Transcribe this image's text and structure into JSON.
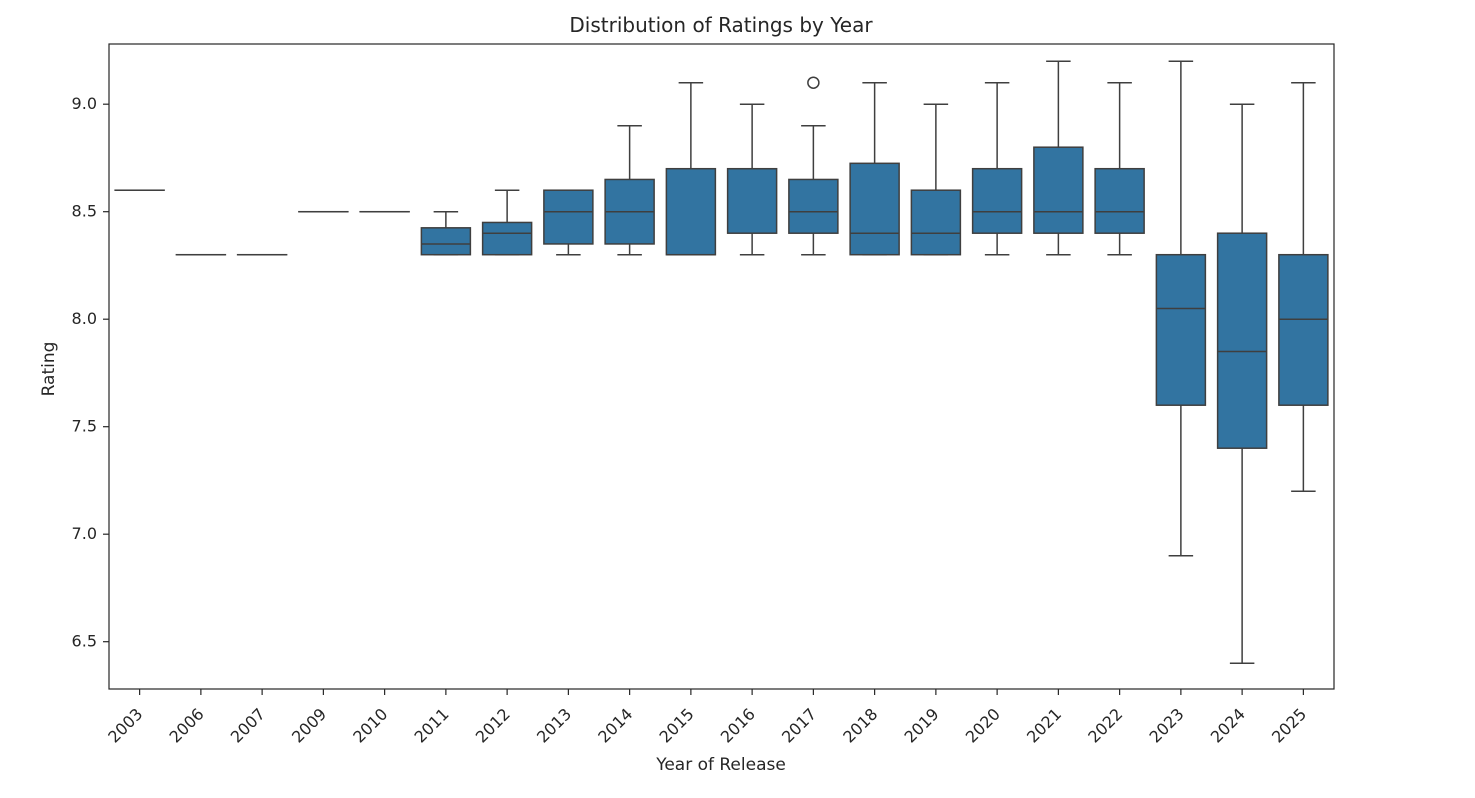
{
  "chart_data": {
    "type": "box",
    "title": "Distribution of Ratings by Year",
    "xlabel": "Year of Release",
    "ylabel": "Rating",
    "ylim": [
      6.28,
      9.28
    ],
    "yticks": [
      "6.5",
      "7.0",
      "7.5",
      "8.0",
      "8.5",
      "9.0"
    ],
    "grid": false,
    "color": "#3274a1",
    "edge_color": "#3f3f3f",
    "categories": [
      "2003",
      "2006",
      "2007",
      "2009",
      "2010",
      "2011",
      "2012",
      "2013",
      "2014",
      "2015",
      "2016",
      "2017",
      "2018",
      "2019",
      "2020",
      "2021",
      "2022",
      "2023",
      "2024",
      "2025"
    ],
    "boxes": [
      {
        "min": 8.6,
        "q1": 8.6,
        "median": 8.6,
        "q3": 8.6,
        "max": 8.6,
        "outliers": []
      },
      {
        "min": 8.3,
        "q1": 8.3,
        "median": 8.3,
        "q3": 8.3,
        "max": 8.3,
        "outliers": []
      },
      {
        "min": 8.3,
        "q1": 8.3,
        "median": 8.3,
        "q3": 8.3,
        "max": 8.3,
        "outliers": []
      },
      {
        "min": 8.5,
        "q1": 8.5,
        "median": 8.5,
        "q3": 8.5,
        "max": 8.5,
        "outliers": []
      },
      {
        "min": 8.5,
        "q1": 8.5,
        "median": 8.5,
        "q3": 8.5,
        "max": 8.5,
        "outliers": []
      },
      {
        "min": 8.3,
        "q1": 8.3,
        "median": 8.35,
        "q3": 8.425,
        "max": 8.5,
        "outliers": []
      },
      {
        "min": 8.3,
        "q1": 8.3,
        "median": 8.4,
        "q3": 8.45,
        "max": 8.6,
        "outliers": []
      },
      {
        "min": 8.3,
        "q1": 8.35,
        "median": 8.5,
        "q3": 8.6,
        "max": 8.6,
        "outliers": []
      },
      {
        "min": 8.3,
        "q1": 8.35,
        "median": 8.5,
        "q3": 8.65,
        "max": 8.9,
        "outliers": []
      },
      {
        "min": 8.3,
        "q1": 8.3,
        "median": 8.3,
        "q3": 8.7,
        "max": 9.1,
        "outliers": []
      },
      {
        "min": 8.3,
        "q1": 8.4,
        "median": 8.7,
        "q3": 8.7,
        "max": 9.0,
        "outliers": []
      },
      {
        "min": 8.3,
        "q1": 8.4,
        "median": 8.5,
        "q3": 8.65,
        "max": 8.9,
        "outliers": [
          9.1
        ]
      },
      {
        "min": 8.3,
        "q1": 8.3,
        "median": 8.4,
        "q3": 8.725,
        "max": 9.1,
        "outliers": []
      },
      {
        "min": 8.3,
        "q1": 8.3,
        "median": 8.4,
        "q3": 8.6,
        "max": 9.0,
        "outliers": []
      },
      {
        "min": 8.3,
        "q1": 8.4,
        "median": 8.5,
        "q3": 8.7,
        "max": 9.1,
        "outliers": []
      },
      {
        "min": 8.3,
        "q1": 8.4,
        "median": 8.5,
        "q3": 8.8,
        "max": 9.2,
        "outliers": []
      },
      {
        "min": 8.3,
        "q1": 8.4,
        "median": 8.5,
        "q3": 8.7,
        "max": 9.1,
        "outliers": []
      },
      {
        "min": 6.9,
        "q1": 7.6,
        "median": 8.05,
        "q3": 8.3,
        "max": 9.2,
        "outliers": []
      },
      {
        "min": 6.4,
        "q1": 7.4,
        "median": 7.85,
        "q3": 8.4,
        "max": 9.0,
        "outliers": []
      },
      {
        "min": 7.2,
        "q1": 7.6,
        "median": 8.0,
        "q3": 8.3,
        "max": 9.1,
        "outliers": []
      }
    ]
  }
}
